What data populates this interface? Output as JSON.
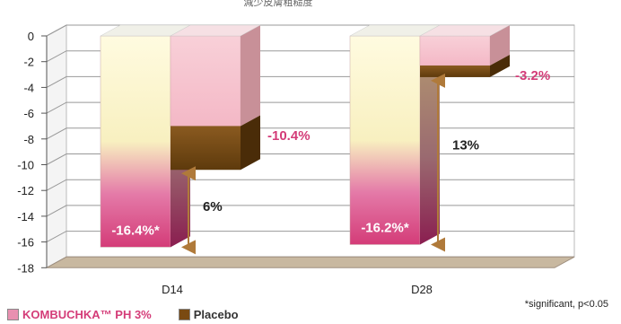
{
  "chart_data": {
    "type": "bar",
    "title": "減少皮膚粗糙度",
    "categories": [
      "D14",
      "D28"
    ],
    "series": [
      {
        "name": "KOMBUCHKA™ PH 3%",
        "values": [
          -16.4,
          -16.2
        ],
        "labels": [
          "-16.4%*",
          "-16.2%*"
        ],
        "color": "#d43c78"
      },
      {
        "name": "Placebo",
        "values": [
          -10.4,
          -3.2
        ],
        "labels": [
          "-10.4%",
          "-3.2%"
        ],
        "color": "#7a4a12"
      }
    ],
    "placebo_cap_from": [
      -7.0,
      -2.3
    ],
    "differences": [
      "6%",
      "13%"
    ],
    "ylim": [
      -18,
      0
    ],
    "yticks": [
      0,
      -2,
      -4,
      -6,
      -8,
      -10,
      -12,
      -14,
      -16,
      -18
    ],
    "grid": true,
    "legend_position": "bottom-left",
    "footnote": "*significant, p<0.05"
  },
  "colors": {
    "placebo_label": "#d43c78",
    "arrow": "#b07a3a",
    "floor": "#c8b8a0"
  }
}
